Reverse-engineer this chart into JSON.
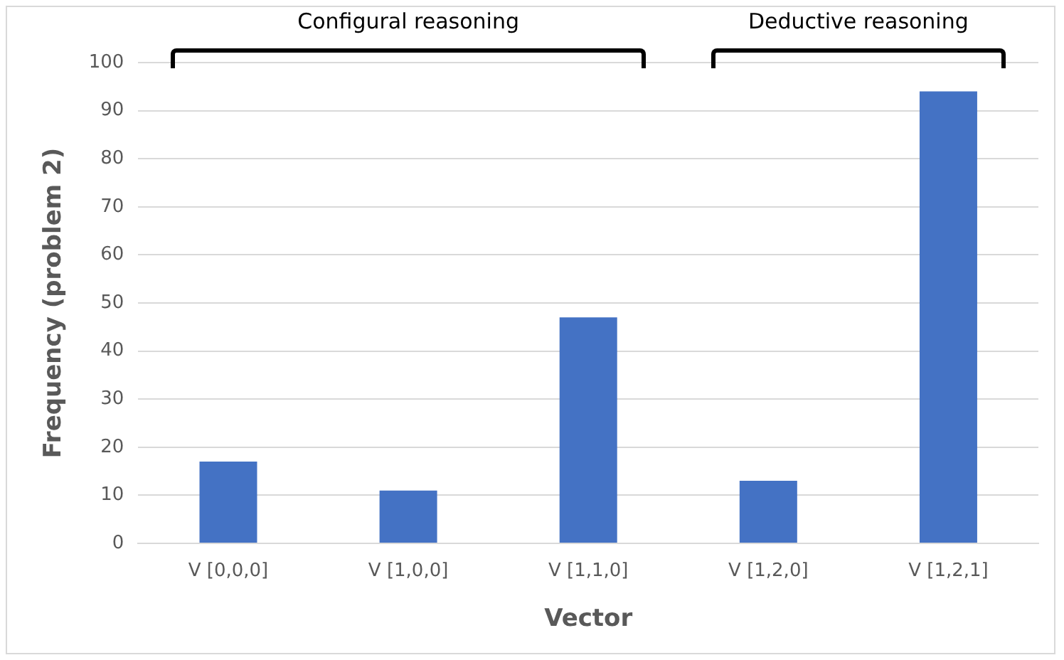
{
  "chart_data": {
    "type": "bar",
    "xlabel": "Vector",
    "ylabel": "Frequency (problem 2)",
    "categories": [
      "V [0,0,0]",
      "V [1,0,0]",
      "V [1,1,0]",
      "V [1,2,0]",
      "V [1,2,1]"
    ],
    "values": [
      17,
      11,
      47,
      13,
      94
    ],
    "color": "#4472c4",
    "ylim": [
      0,
      100
    ],
    "yticks": [
      0,
      10,
      20,
      30,
      40,
      50,
      60,
      70,
      80,
      90,
      100
    ],
    "grid": "y",
    "annotations": [
      "Configural reasoning",
      "Deductive reasoning"
    ]
  }
}
